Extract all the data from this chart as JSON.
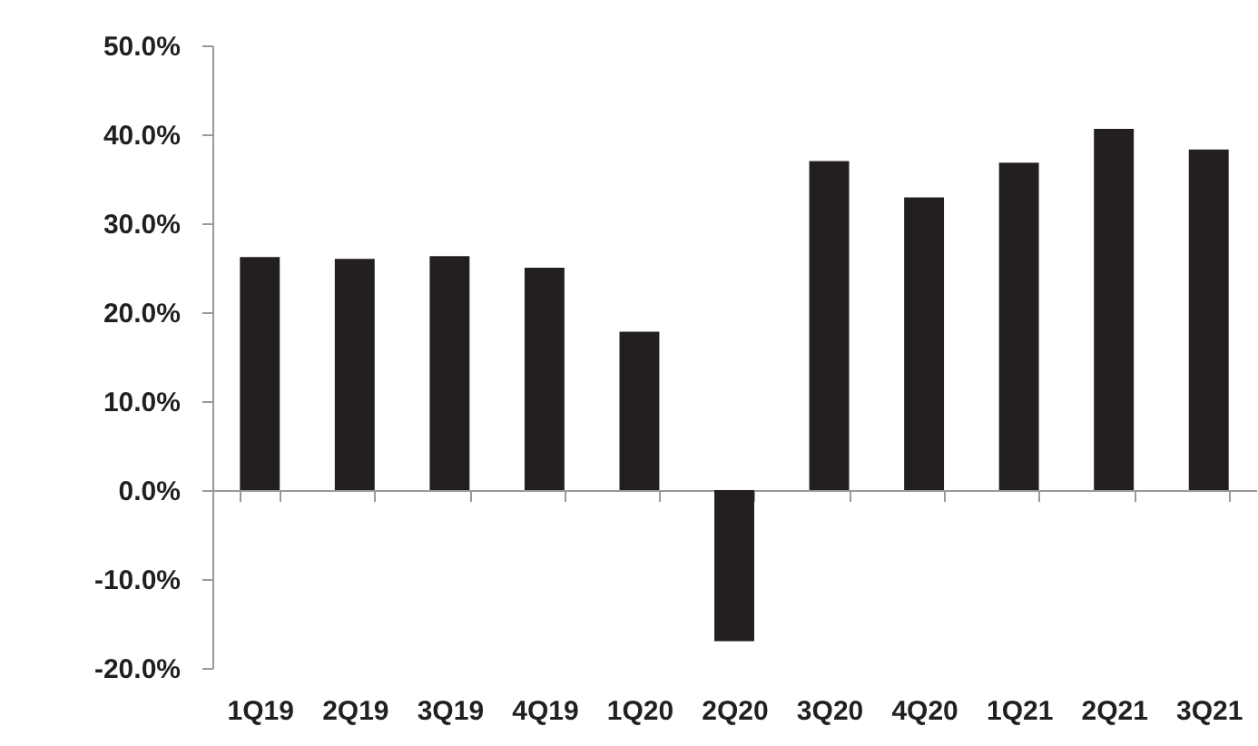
{
  "chart_data": {
    "type": "bar",
    "categories": [
      "1Q19",
      "2Q19",
      "3Q19",
      "4Q19",
      "1Q20",
      "2Q20",
      "3Q20",
      "4Q20",
      "1Q21",
      "2Q21",
      "3Q21"
    ],
    "values": [
      26.2,
      26.0,
      26.3,
      25.0,
      17.8,
      -17.0,
      37.0,
      32.9,
      36.8,
      40.6,
      38.3
    ],
    "color": "#231f20",
    "ylim": [
      -20,
      50
    ],
    "yticks": [
      {
        "value": -20,
        "label": "-20.0%"
      },
      {
        "value": -10,
        "label": "-10.0%"
      },
      {
        "value": 0,
        "label": "0.0%"
      },
      {
        "value": 10,
        "label": "10.0%"
      },
      {
        "value": 20,
        "label": "20.0%"
      },
      {
        "value": 30,
        "label": "30.0%"
      },
      {
        "value": 40,
        "label": "40.0%"
      },
      {
        "value": 50,
        "label": "50.0%"
      }
    ],
    "tick_labels": "xy"
  }
}
